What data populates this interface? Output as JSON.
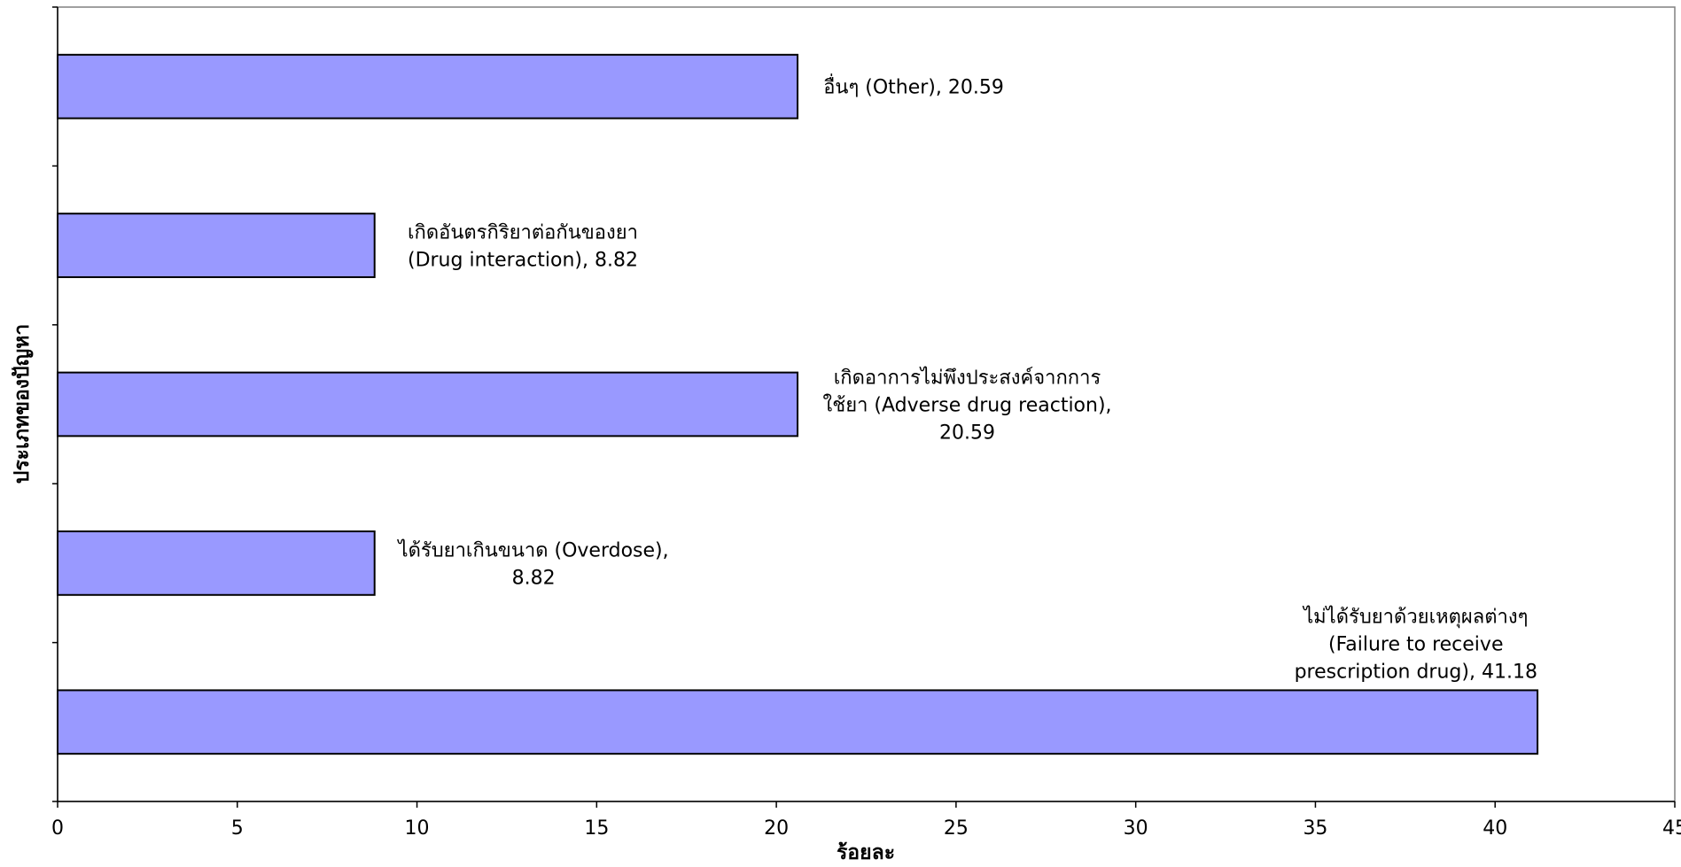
{
  "chart_data": {
    "type": "bar",
    "orientation": "horizontal",
    "title": "",
    "xlabel": "ร้อยละ",
    "ylabel": "ประเภทของปัญหา",
    "xlim": [
      0,
      45
    ],
    "xticks": [
      0,
      5,
      10,
      15,
      20,
      25,
      30,
      35,
      40,
      45
    ],
    "grid": false,
    "bar_color": "#9999ff",
    "bar_edge_color": "#000000",
    "categories": [
      "อื่นๆ (Other)",
      "เกิดอันตรกิริยาต่อกันของยา (Drug interaction)",
      "เกิดอาการไม่พึงประสงค์จากการใช้ยา (Adverse drug reaction)",
      "ได้รับยาเกินขนาด (Overdose)",
      "ไม่ได้รับยาด้วยเหตุผลต่างๆ (Failure to receive prescription drug)"
    ],
    "values": [
      20.59,
      8.82,
      20.59,
      8.82,
      41.18
    ],
    "data_labels": [
      [
        "อื่นๆ (Other), 20.59"
      ],
      [
        "เกิดอันตรกิริยาต่อกันของยา",
        "(Drug interaction), 8.82"
      ],
      [
        "เกิดอาการไม่พึงประสงค์จากการ",
        "ใช้ยา (Adverse drug reaction),",
        "20.59"
      ],
      [
        "ได้รับยาเกินขนาด (Overdose),",
        "8.82"
      ],
      [
        "ไม่ได้รับยาด้วยเหตุผลต่างๆ",
        "(Failure to receive",
        "prescription drug), 41.18"
      ]
    ]
  }
}
